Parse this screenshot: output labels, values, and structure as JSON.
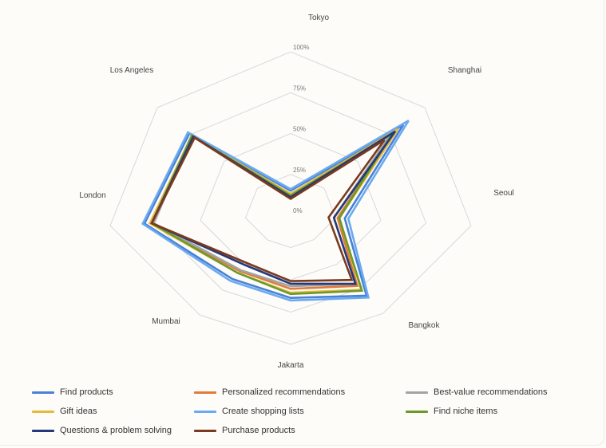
{
  "chart_data": {
    "type": "radar",
    "axes": [
      "Tokyo",
      "Shanghai",
      "Seoul",
      "Bangkok",
      "Jakarta",
      "Mumbai",
      "London",
      "Los Angeles"
    ],
    "ticks": [
      "0%",
      "25%",
      "50%",
      "75%",
      "100%"
    ],
    "rlim": [
      0,
      100
    ],
    "grid": true,
    "legend_position": "bottom",
    "series": [
      {
        "name": "Find products",
        "color": "#4a80d6",
        "values": [
          15,
          84,
          30,
          82,
          64,
          64,
          81,
          76
        ]
      },
      {
        "name": "Personalized recommendations",
        "color": "#e07b39",
        "values": [
          12,
          78,
          26,
          72,
          57,
          56,
          77,
          74
        ]
      },
      {
        "name": "Best-value recommendations",
        "color": "#a3a3a3",
        "values": [
          13,
          74,
          24,
          70,
          55,
          55,
          76,
          74
        ]
      },
      {
        "name": "Gift ideas",
        "color": "#e5b93a",
        "values": [
          13,
          80,
          27,
          76,
          60,
          58,
          78,
          74
        ]
      },
      {
        "name": "Create shopping lists",
        "color": "#6aaaf0",
        "values": [
          16,
          88,
          32,
          84,
          66,
          66,
          82,
          77
        ]
      },
      {
        "name": "Find niche items",
        "color": "#6b9a2a",
        "values": [
          12,
          76,
          27,
          77,
          61,
          58,
          77,
          74
        ]
      },
      {
        "name": "Questions & problem solving",
        "color": "#23397a",
        "values": [
          11,
          78,
          24,
          70,
          53,
          50,
          77,
          73
        ]
      },
      {
        "name": "Purchase products",
        "color": "#7b3a1e",
        "values": [
          10,
          70,
          21,
          66,
          51,
          48,
          77,
          72
        ]
      }
    ]
  }
}
